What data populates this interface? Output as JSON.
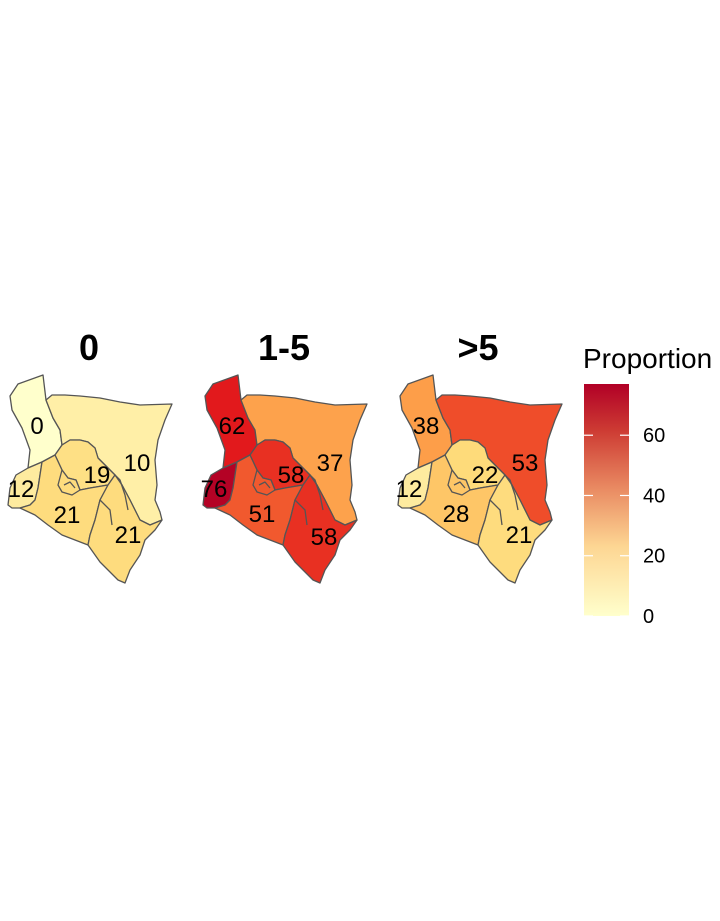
{
  "chart_data": {
    "type": "choropleth",
    "panels": [
      {
        "title": "0",
        "values": [
          0,
          10,
          19,
          12,
          21,
          21
        ]
      },
      {
        "title": "1-5",
        "values": [
          62,
          37,
          58,
          76,
          51,
          58
        ]
      },
      {
        "title": ">5",
        "values": [
          38,
          53,
          22,
          12,
          28,
          21
        ]
      }
    ],
    "legend": {
      "title": "Proportion",
      "placement": "right",
      "min": 0,
      "max": 77,
      "ticks": [
        0,
        20,
        40,
        60
      ],
      "tick_labels": [
        "0",
        "20",
        "40",
        "60"
      ],
      "colors": [
        "#ffffcc",
        "#fed976",
        "#fd8d3c",
        "#e31a1c",
        "#b10026"
      ]
    }
  }
}
